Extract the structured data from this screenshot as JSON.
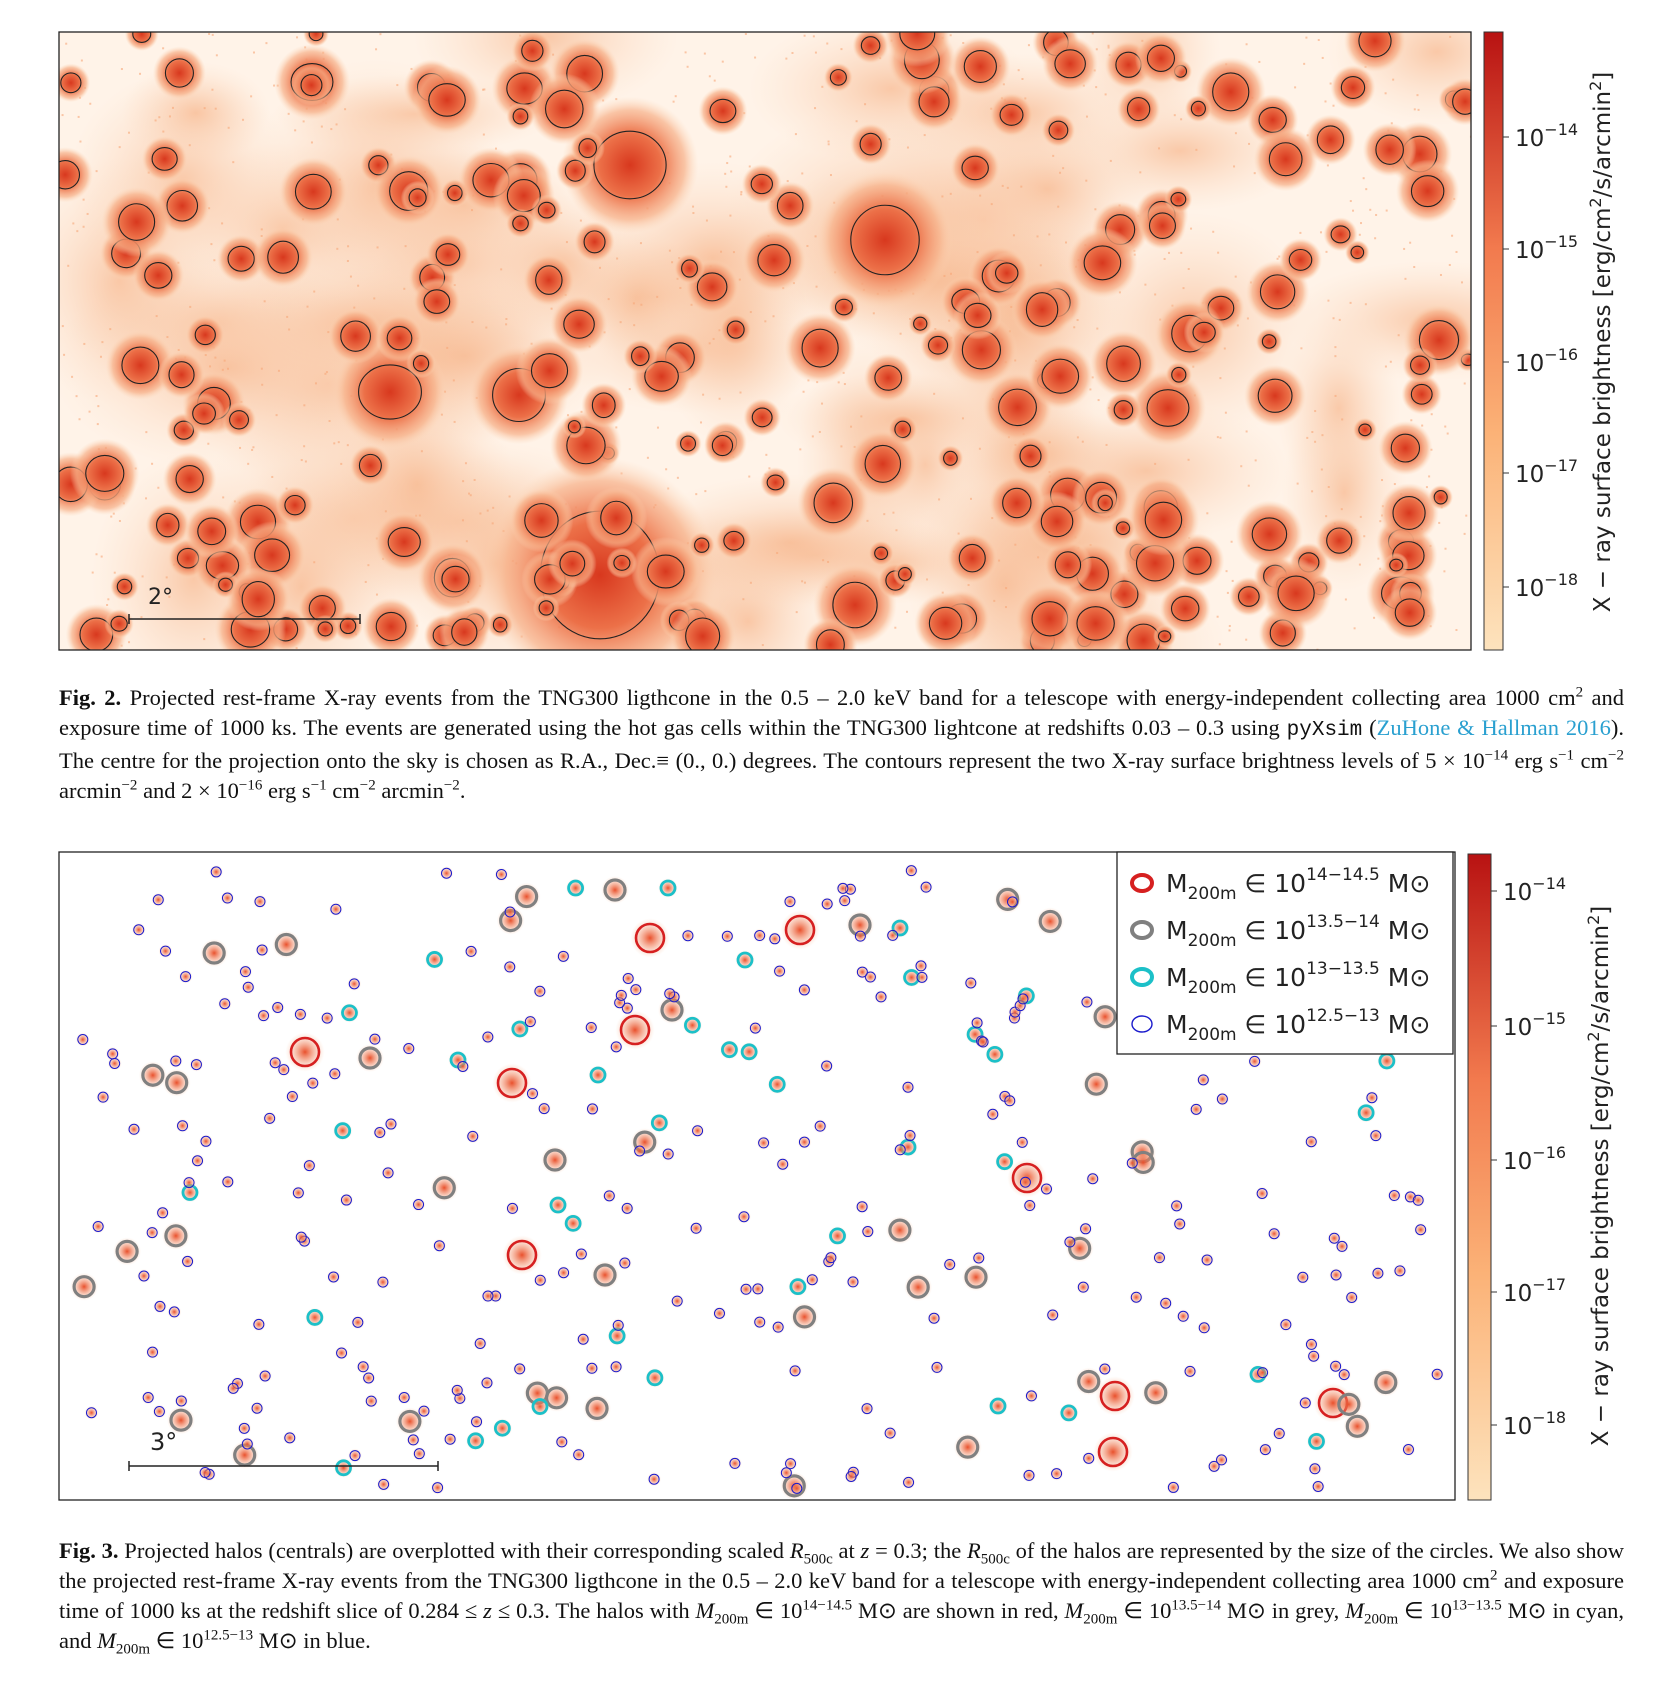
{
  "figures": [
    {
      "scale_bar": "2°",
      "colorbar": {
        "label": [
          "X − ray surface brightness [erg/cm",
          "2",
          "/s/arcmin",
          "2",
          "]"
        ],
        "ticks": [
          {
            "base": "10",
            "exp": "−14"
          },
          {
            "base": "10",
            "exp": "−15"
          },
          {
            "base": "10",
            "exp": "−16"
          },
          {
            "base": "10",
            "exp": "−17"
          },
          {
            "base": "10",
            "exp": "−18"
          }
        ]
      },
      "caption": [
        "Fig. 2.",
        " Projected rest-frame X-ray events from the TNG300 ligthcone in the 0.5 – 2.0 keV band for a telescope with energy-independent collecting area 1000 cm",
        "2",
        " and exposure time of 1000 ks. The events are generated using the hot gas cells within the TNG300 lightcone at redshifts 0.03 – 0.3 using ",
        "pyXsim",
        " (",
        "ZuHone & Hallman 2016",
        "). The centre for the projection onto the sky is chosen as R.A., Dec.≡ (0., 0.) degrees. The contours represent the two X-ray surface brightness levels of 5 × 10",
        "−14",
        " erg s",
        "−1",
        " cm",
        "−2",
        " arcmin",
        "−2",
        " and 2 × 10",
        "−16",
        " erg s",
        "−1",
        " cm",
        "−2",
        " arcmin",
        "−2",
        "."
      ]
    },
    {
      "scale_bar": "3°",
      "colorbar": {
        "label": [
          "X − ray surface brightness [erg/cm",
          "2",
          "/s/arcmin",
          "2",
          "]"
        ],
        "ticks": [
          {
            "base": "10",
            "exp": "−14"
          },
          {
            "base": "10",
            "exp": "−15"
          },
          {
            "base": "10",
            "exp": "−16"
          },
          {
            "base": "10",
            "exp": "−17"
          },
          {
            "base": "10",
            "exp": "−18"
          }
        ]
      },
      "legend": [
        {
          "symbol": "M",
          "sub": "200m",
          "mid": " ∈ 10",
          "sup": "14−14.5",
          "unit": " M⊙",
          "color": "#d62020"
        },
        {
          "symbol": "M",
          "sub": "200m",
          "mid": " ∈ 10",
          "sup": "13.5−14",
          "unit": " M⊙",
          "color": "#808080"
        },
        {
          "symbol": "M",
          "sub": "200m",
          "mid": " ∈ 10",
          "sup": "13−13.5",
          "unit": " M⊙",
          "color": "#1cc0c8"
        },
        {
          "symbol": "M",
          "sub": "200m",
          "mid": " ∈ 10",
          "sup": "12.5−13",
          "unit": " M⊙",
          "color": "#1a1acc"
        }
      ],
      "caption": [
        "Fig. 3.",
        " Projected halos (centrals) are overplotted with their corresponding scaled ",
        "R",
        "500c",
        " at ",
        "z",
        " = 0.3; the ",
        "R",
        "500c",
        " of the halos are represented by the size of the circles. We also show the projected rest-frame X-ray events from the TNG300 ligthcone in the 0.5 – 2.0 keV band for a telescope with energy-independent collecting area 1000 cm",
        "2",
        " and exposure time of 1000 ks at the redshift slice of 0.284 ≤ ",
        "z",
        " ≤ 0.3. The halos with ",
        "M",
        "200m",
        " ∈ 10",
        "14−14.5",
        " M⊙ are shown in red, ",
        "M",
        "200m",
        " ∈ 10",
        "13.5−14",
        " M⊙ in grey, ",
        "M",
        "200m",
        " ∈ 10",
        "13−13.5",
        " M⊙ in cyan, and ",
        "M",
        "200m",
        " ∈ 10",
        "12.5−13",
        " M⊙ in blue."
      ]
    }
  ]
}
